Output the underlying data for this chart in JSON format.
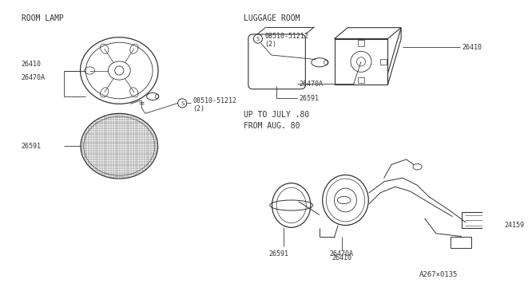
{
  "bg_color": "#ffffff",
  "line_color": "#333333",
  "section_labels": {
    "room_lamp": "ROOM LAMP",
    "luggage_room": "LUGGAGE ROOM",
    "up_to_july": "UP TO JULY .80",
    "from_aug": "FROM AUG. 80"
  },
  "part_numbers": {
    "26410": "26410",
    "26470A": "26470A",
    "26591": "26591",
    "08510_51212": "08510-51212",
    "qty2": "(2)",
    "24159": "24159"
  },
  "diagram_code": "A267×0135",
  "font_size_part": 6.0,
  "font_size_section": 7.0
}
